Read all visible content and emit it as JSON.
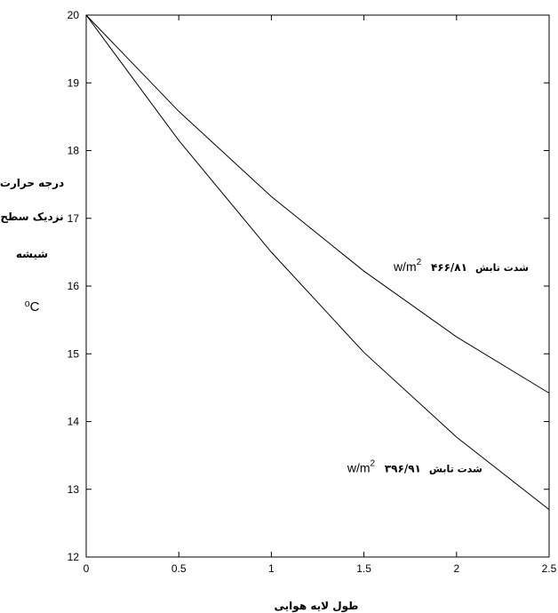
{
  "chart_data": {
    "type": "line",
    "title": "",
    "xlabel": "طول لایه هوایی",
    "ylabel_lines": [
      "درجه حرارت",
      "نزدیک سطح",
      "شیشه"
    ],
    "ylabel_unit": "⁰C",
    "xlim": [
      0,
      2.5
    ],
    "ylim": [
      12,
      20
    ],
    "xticks": [
      0,
      0.5,
      1,
      1.5,
      2,
      2.5
    ],
    "xtick_labels": [
      "0",
      "0.5",
      "1",
      "1.5",
      "2",
      "2.5"
    ],
    "yticks": [
      12,
      13,
      14,
      15,
      16,
      17,
      18,
      19,
      20
    ],
    "ytick_labels": [
      "12",
      "13",
      "14",
      "15",
      "16",
      "17",
      "18",
      "19",
      "20"
    ],
    "grid": false,
    "x": [
      0,
      0.5,
      1,
      1.5,
      2,
      2.5
    ],
    "series": [
      {
        "values": [
          20,
          18.58,
          17.32,
          16.22,
          15.25,
          14.42
        ],
        "annotation": {
          "text": "شدت تابش",
          "number": "۴۶۶/۸۱",
          "unit": "w/m",
          "sup": "2",
          "x": 1.66,
          "y": 16.22
        }
      },
      {
        "values": [
          20,
          18.15,
          16.5,
          15.02,
          13.77,
          12.7
        ],
        "annotation": {
          "text": "شدت تابش",
          "number": "۳۹۶/۹۱",
          "unit": "w/m",
          "sup": "2",
          "x": 1.41,
          "y": 13.25
        }
      }
    ]
  }
}
